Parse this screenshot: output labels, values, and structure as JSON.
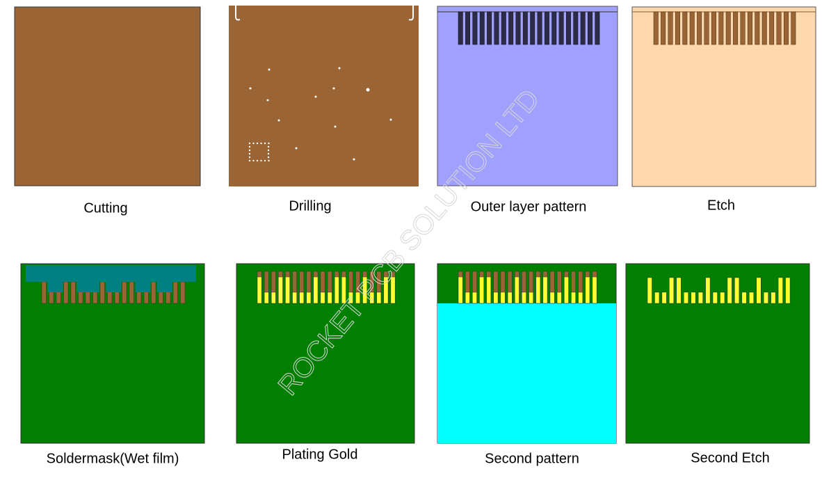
{
  "panels": [
    {
      "label": "Cutting"
    },
    {
      "label": "Drilling"
    },
    {
      "label": "Outer layer pattern"
    },
    {
      "label": "Etch"
    },
    {
      "label": "Soldermask(Wet film)"
    },
    {
      "label": "Plating Gold"
    },
    {
      "label": "Second pattern"
    },
    {
      "label": "Second Etch"
    }
  ],
  "watermark": "ROCKET PCB SOLUTION LTD"
}
